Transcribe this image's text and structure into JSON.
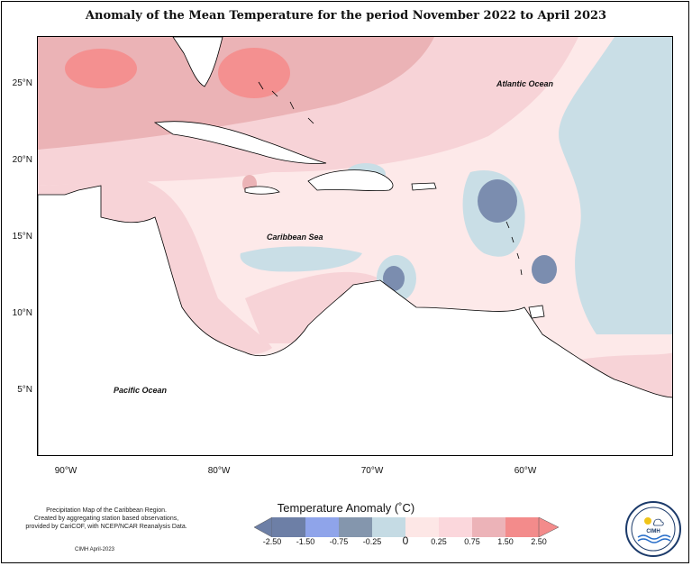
{
  "title": "Anomaly of the Mean Temperature for the period November 2022 to April 2023",
  "map": {
    "lat_labels": [
      "25°N",
      "20°N",
      "15°N",
      "10°N",
      "5°N"
    ],
    "lon_labels": [
      "90°W",
      "80°W",
      "70°W",
      "60°W"
    ],
    "labels": {
      "atlantic": "Atlantic Ocean",
      "caribbean": "Caribbean Sea",
      "pacific": "Pacific Ocean"
    }
  },
  "legend": {
    "title": "Temperature Anomaly (˚C)",
    "ticks": [
      "-2.50",
      "-1.50",
      "-0.75",
      "-0.25",
      "0",
      "0.25",
      "0.75",
      "1.50",
      "2.50"
    ],
    "colors": [
      "#6d7fa6",
      "#8fa4ea",
      "#8496ad",
      "#c5dbe4",
      "#fde7e6",
      "#fbd7dc",
      "#ecb3b8",
      "#f38b8b"
    ]
  },
  "colors": {
    "strong_cool": "#7b8daf",
    "cool": "#c9dee6",
    "neutral_warm": "#fde9e9",
    "warm": "#f7d3d7",
    "warmer": "#ebb3b6",
    "hot": "#f49090",
    "land": "#ffffff"
  },
  "notes": {
    "line1": "Precipitation Map of the Caribbean Region.",
    "line2": "Created by aggregating station based observations,",
    "line3": "provided by CariCOF, with NCEP/NCAR Reanalysis Data.",
    "credit": "CIMH April-2023"
  },
  "logo": {
    "text": "CIMH"
  }
}
